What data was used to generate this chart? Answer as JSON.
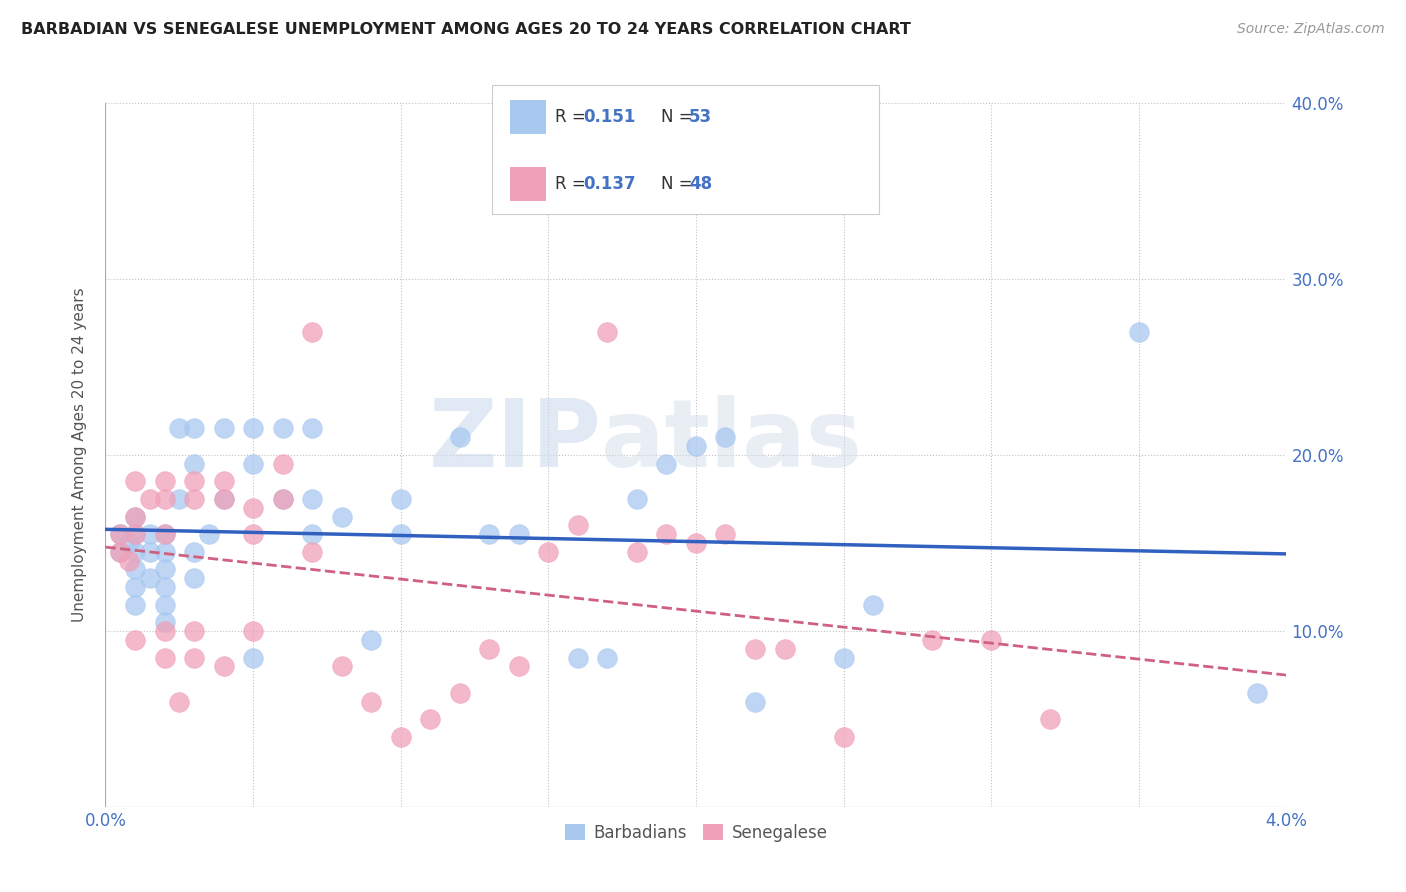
{
  "title": "BARBADIAN VS SENEGALESE UNEMPLOYMENT AMONG AGES 20 TO 24 YEARS CORRELATION CHART",
  "source": "Source: ZipAtlas.com",
  "ylabel": "Unemployment Among Ages 20 to 24 years",
  "xlim": [
    0.0,
    0.04
  ],
  "ylim": [
    0.0,
    0.4
  ],
  "xticks": [
    0.0,
    0.005,
    0.01,
    0.015,
    0.02,
    0.025,
    0.03,
    0.035,
    0.04
  ],
  "xticklabels": [
    "0.0%",
    "",
    "",
    "",
    "",
    "",
    "",
    "",
    "4.0%"
  ],
  "yticks": [
    0.0,
    0.1,
    0.2,
    0.3,
    0.4
  ],
  "yticklabels": [
    "",
    "10.0%",
    "20.0%",
    "30.0%",
    "40.0%"
  ],
  "barbadian_color": "#a8c8f0",
  "senegalese_color": "#f0a0b8",
  "barbadian_line_color": "#3060c0",
  "senegalese_line_color": "#d06080",
  "barbadian_R": 0.151,
  "barbadian_N": 53,
  "senegalese_R": 0.137,
  "senegalese_N": 48,
  "watermark_zip": "ZIP",
  "watermark_atlas": "atlas",
  "barbadian_x": [
    0.0005,
    0.0005,
    0.0008,
    0.001,
    0.001,
    0.001,
    0.001,
    0.001,
    0.001,
    0.0015,
    0.0015,
    0.0015,
    0.002,
    0.002,
    0.002,
    0.002,
    0.002,
    0.002,
    0.0025,
    0.0025,
    0.003,
    0.003,
    0.003,
    0.003,
    0.0035,
    0.004,
    0.004,
    0.005,
    0.005,
    0.005,
    0.006,
    0.006,
    0.007,
    0.007,
    0.007,
    0.008,
    0.009,
    0.01,
    0.01,
    0.012,
    0.013,
    0.014,
    0.016,
    0.017,
    0.018,
    0.019,
    0.02,
    0.021,
    0.022,
    0.025,
    0.026,
    0.035,
    0.039
  ],
  "barbadian_y": [
    0.155,
    0.145,
    0.15,
    0.165,
    0.155,
    0.145,
    0.135,
    0.125,
    0.115,
    0.155,
    0.145,
    0.13,
    0.155,
    0.145,
    0.135,
    0.125,
    0.115,
    0.105,
    0.215,
    0.175,
    0.215,
    0.195,
    0.145,
    0.13,
    0.155,
    0.215,
    0.175,
    0.215,
    0.195,
    0.085,
    0.215,
    0.175,
    0.215,
    0.175,
    0.155,
    0.165,
    0.095,
    0.175,
    0.155,
    0.21,
    0.155,
    0.155,
    0.085,
    0.085,
    0.175,
    0.195,
    0.205,
    0.21,
    0.06,
    0.085,
    0.115,
    0.27,
    0.065
  ],
  "senegalese_x": [
    0.0005,
    0.0005,
    0.0008,
    0.001,
    0.001,
    0.001,
    0.001,
    0.0015,
    0.002,
    0.002,
    0.002,
    0.002,
    0.002,
    0.0025,
    0.003,
    0.003,
    0.003,
    0.003,
    0.004,
    0.004,
    0.004,
    0.005,
    0.005,
    0.005,
    0.006,
    0.006,
    0.007,
    0.007,
    0.008,
    0.009,
    0.01,
    0.011,
    0.012,
    0.013,
    0.014,
    0.015,
    0.016,
    0.017,
    0.018,
    0.019,
    0.02,
    0.021,
    0.022,
    0.023,
    0.025,
    0.028,
    0.03,
    0.032
  ],
  "senegalese_y": [
    0.155,
    0.145,
    0.14,
    0.185,
    0.165,
    0.155,
    0.095,
    0.175,
    0.185,
    0.175,
    0.155,
    0.1,
    0.085,
    0.06,
    0.185,
    0.175,
    0.1,
    0.085,
    0.185,
    0.175,
    0.08,
    0.17,
    0.155,
    0.1,
    0.195,
    0.175,
    0.27,
    0.145,
    0.08,
    0.06,
    0.04,
    0.05,
    0.065,
    0.09,
    0.08,
    0.145,
    0.16,
    0.27,
    0.145,
    0.155,
    0.15,
    0.155,
    0.09,
    0.09,
    0.04,
    0.095,
    0.095,
    0.05
  ]
}
